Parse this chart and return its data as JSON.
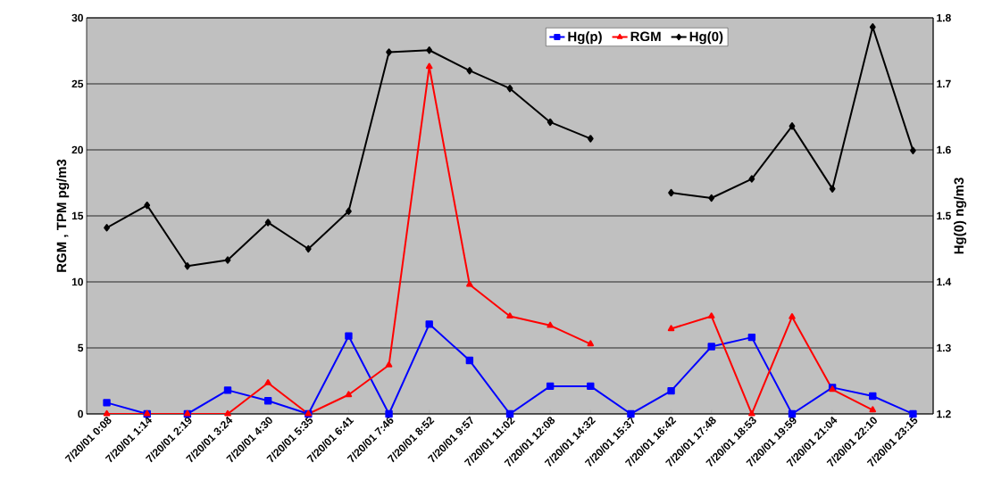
{
  "chart_data": {
    "type": "line",
    "categories": [
      "7/20/01 0:08",
      "7/20/01 1:14",
      "7/20/01 2:19",
      "7/20/01 3:24",
      "7/20/01 4:30",
      "7/20/01 5:35",
      "7/20/01 6:41",
      "7/20/01 7:46",
      "7/20/01 8:52",
      "7/20/01 9:57",
      "7/20/01 11:02",
      "7/20/01 12:08",
      "7/20/01 14:32",
      "7/20/01 15:37",
      "7/20/01 16:42",
      "7/20/01 17:48",
      "7/20/01 18:53",
      "7/20/01 19:59",
      "7/20/01 21:04",
      "7/20/01 22:10",
      "7/20/01 23:15"
    ],
    "series": [
      {
        "name": "Hg(p)",
        "color": "#0000ff",
        "marker": "square",
        "values": [
          0.85,
          0,
          0,
          1.8,
          1.0,
          0,
          5.9,
          0,
          6.8,
          4.05,
          0,
          2.1,
          2.1,
          0,
          1.75,
          5.1,
          5.8,
          0,
          2.0,
          1.35,
          0
        ]
      },
      {
        "name": "RGM",
        "color": "#ff0000",
        "marker": "triangle",
        "values": [
          0,
          0,
          0,
          0,
          2.35,
          0,
          1.45,
          3.7,
          26.3,
          9.8,
          7.4,
          6.7,
          5.3,
          null,
          6.45,
          7.4,
          0,
          7.35,
          1.85,
          0.3,
          null
        ]
      },
      {
        "name": "Hg(0)",
        "color": "#000000",
        "marker": "diamond",
        "axis": "y2",
        "values": [
          1.482,
          1.516,
          1.424,
          1.433,
          1.49,
          1.45,
          1.507,
          1.748,
          1.751,
          1.72,
          1.693,
          1.642,
          1.617,
          null,
          1.535,
          1.527,
          1.556,
          1.636,
          1.541,
          1.786,
          1.599
        ]
      }
    ],
    "ylabel": "RGM , TPM pg/m3",
    "y2label": "Hg(0) ng/m3",
    "ylim": [
      0,
      30
    ],
    "yticks": [
      0,
      5,
      10,
      15,
      20,
      25,
      30
    ],
    "y2lim": [
      1.2,
      1.8
    ],
    "y2ticks": [
      1.2,
      1.3,
      1.4,
      1.5,
      1.6,
      1.7,
      1.8
    ],
    "grid": "y",
    "legend": "top",
    "line_style": "solid"
  }
}
